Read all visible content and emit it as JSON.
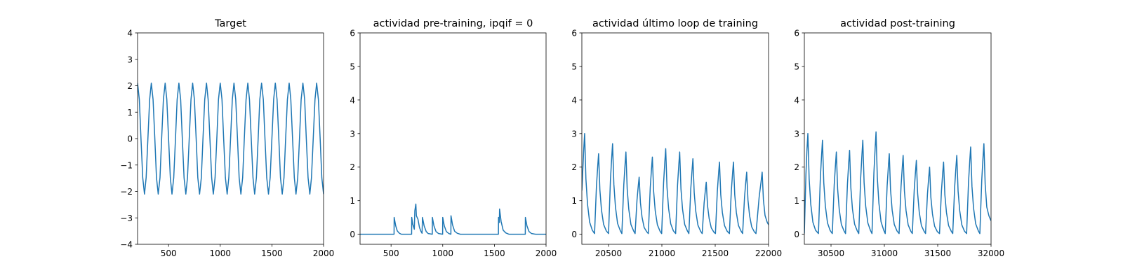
{
  "chart_data": [
    {
      "type": "line",
      "title": "Target",
      "color": "#1f77b4",
      "xlim": [
        200,
        2000
      ],
      "xticks": [
        500,
        1000,
        1500,
        2000
      ],
      "ylim": [
        -4,
        4
      ],
      "yticks": [
        {
          "value": -4,
          "label": "−4"
        },
        {
          "value": -3,
          "label": "−3"
        },
        {
          "value": -2,
          "label": "−2"
        },
        {
          "value": -1,
          "label": "−1"
        },
        0,
        1,
        2,
        3,
        4
      ],
      "x": [
        200,
        217,
        233,
        250,
        267,
        283,
        300,
        317,
        333,
        350,
        367,
        383,
        400,
        417,
        433,
        450,
        467,
        483,
        500,
        517,
        533,
        550,
        567,
        583,
        600,
        617,
        633,
        650,
        667,
        683,
        700,
        717,
        733,
        750,
        767,
        783,
        800,
        817,
        833,
        850,
        867,
        883,
        900,
        917,
        933,
        950,
        967,
        983,
        1000,
        1017,
        1033,
        1050,
        1067,
        1083,
        1100,
        1117,
        1133,
        1150,
        1167,
        1183,
        1200,
        1217,
        1233,
        1250,
        1267,
        1283,
        1300,
        1317,
        1333,
        1350,
        1367,
        1383,
        1400,
        1417,
        1433,
        1450,
        1467,
        1483,
        1500,
        1517,
        1533,
        1550,
        1567,
        1583,
        1600,
        1617,
        1633,
        1650,
        1667,
        1683,
        1700,
        1717,
        1733,
        1750,
        1767,
        1783,
        1800,
        1817,
        1833,
        1850,
        1867,
        1883,
        1900,
        1917,
        1933,
        1950,
        1967,
        1983,
        2000
      ],
      "values": [
        2.1,
        1.48,
        0,
        -1.48,
        -2.1,
        -1.48,
        0,
        1.48,
        2.1,
        1.48,
        0,
        -1.48,
        -2.1,
        -1.48,
        0,
        1.48,
        2.1,
        1.48,
        0,
        -1.48,
        -2.1,
        -1.48,
        0,
        1.48,
        2.1,
        1.48,
        0,
        -1.48,
        -2.1,
        -1.48,
        0,
        1.48,
        2.1,
        1.48,
        0,
        -1.48,
        -2.1,
        -1.48,
        0,
        1.48,
        2.1,
        1.48,
        0,
        -1.48,
        -2.1,
        -1.48,
        0,
        1.48,
        2.1,
        1.48,
        0,
        -1.48,
        -2.1,
        -1.48,
        0,
        1.48,
        2.1,
        1.48,
        0,
        -1.48,
        -2.1,
        -1.48,
        0,
        1.48,
        2.1,
        1.48,
        0,
        -1.48,
        -2.1,
        -1.48,
        0,
        1.48,
        2.1,
        1.48,
        0,
        -1.48,
        -2.1,
        -1.48,
        0,
        1.48,
        2.1,
        1.48,
        0,
        -1.48,
        -2.1,
        -1.48,
        0,
        1.48,
        2.1,
        1.48,
        0,
        -1.48,
        -2.1,
        -1.48,
        0,
        1.48,
        2.1,
        1.48,
        0,
        -1.48,
        -2.1,
        -1.48,
        0,
        1.48,
        2.1,
        1.48,
        0,
        -1.48,
        -2.1
      ]
    },
    {
      "type": "line",
      "title": "actividad pre-training, ipqif = 0",
      "color": "#1f77b4",
      "xlim": [
        200,
        2000
      ],
      "xticks": [
        500,
        1000,
        1500,
        2000
      ],
      "ylim": [
        -0.3,
        6
      ],
      "yticks": [
        0,
        1,
        2,
        3,
        4,
        5,
        6
      ],
      "x": [
        200,
        529,
        530,
        545,
        560,
        580,
        600,
        699,
        700,
        710,
        725,
        730,
        740,
        745,
        760,
        775,
        790,
        800,
        804,
        820,
        840,
        860,
        899,
        900,
        915,
        935,
        960,
        999,
        1000,
        1015,
        1035,
        1060,
        1079,
        1080,
        1095,
        1115,
        1140,
        1170,
        1539,
        1540,
        1548,
        1550,
        1565,
        1585,
        1610,
        1640,
        1799,
        1800,
        1815,
        1835,
        1860,
        1900,
        2000
      ],
      "values": [
        0,
        0,
        0.5,
        0.25,
        0.1,
        0.03,
        0,
        0,
        0.5,
        0.3,
        0.15,
        0.7,
        0.9,
        0.55,
        0.45,
        0.2,
        0.08,
        0.03,
        0.5,
        0.25,
        0.08,
        0.02,
        0,
        0.5,
        0.25,
        0.08,
        0.02,
        0,
        0.5,
        0.25,
        0.08,
        0.02,
        0,
        0.55,
        0.28,
        0.09,
        0.03,
        0,
        0,
        0.5,
        0.35,
        0.75,
        0.38,
        0.12,
        0.04,
        0,
        0,
        0.5,
        0.25,
        0.08,
        0.02,
        0,
        0
      ]
    },
    {
      "type": "line",
      "title": "actividad último loop de training",
      "color": "#1f77b4",
      "xlim": [
        20250,
        22000
      ],
      "xticks": [
        20500,
        21000,
        21500,
        22000
      ],
      "ylim": [
        -0.3,
        6
      ],
      "yticks": [
        0,
        1,
        2,
        3,
        4,
        5,
        6
      ],
      "x": [
        20250,
        20268,
        20276,
        20288,
        20303,
        20323,
        20348,
        20369,
        20387,
        20399,
        20407,
        20419,
        20434,
        20454,
        20479,
        20500,
        20518,
        20530,
        20538,
        20550,
        20565,
        20585,
        20610,
        20625,
        20643,
        20655,
        20663,
        20675,
        20690,
        20710,
        20735,
        20749,
        20767,
        20779,
        20787,
        20799,
        20814,
        20834,
        20859,
        20873,
        20891,
        20903,
        20911,
        20923,
        20938,
        20958,
        20983,
        20998,
        21016,
        21028,
        21036,
        21048,
        21063,
        21083,
        21108,
        21129,
        21147,
        21159,
        21167,
        21179,
        21194,
        21214,
        21239,
        21253,
        21271,
        21283,
        21291,
        21303,
        21318,
        21338,
        21363,
        21378,
        21396,
        21408,
        21416,
        21428,
        21443,
        21463,
        21488,
        21502,
        21520,
        21532,
        21540,
        21552,
        21567,
        21587,
        21612,
        21633,
        21651,
        21663,
        21671,
        21683,
        21698,
        21718,
        21743,
        21757,
        21775,
        21787,
        21795,
        21807,
        21822,
        21842,
        21867,
        21882,
        21912,
        21930,
        21940,
        21952,
        21967,
        21987,
        22000
      ],
      "values": [
        1.3,
        2.55,
        3.0,
        1.65,
        0.9,
        0.36,
        0.12,
        0.02,
        1.44,
        2.04,
        2.4,
        1.32,
        0.72,
        0.29,
        0.1,
        0.02,
        1.62,
        2.3,
        2.7,
        1.49,
        0.81,
        0.32,
        0.11,
        0.02,
        1.47,
        2.08,
        2.45,
        1.35,
        0.74,
        0.29,
        0.1,
        0.02,
        1.02,
        1.45,
        1.7,
        0.94,
        0.51,
        0.2,
        0.07,
        0.02,
        1.38,
        1.96,
        2.3,
        1.27,
        0.69,
        0.28,
        0.09,
        0.02,
        1.53,
        2.17,
        2.55,
        1.4,
        0.77,
        0.31,
        0.1,
        0.02,
        1.47,
        2.08,
        2.45,
        1.35,
        0.74,
        0.29,
        0.1,
        0.02,
        1.35,
        1.91,
        2.25,
        1.24,
        0.68,
        0.27,
        0.09,
        0.02,
        0.93,
        1.32,
        1.55,
        0.85,
        0.47,
        0.19,
        0.06,
        0.02,
        1.29,
        1.83,
        2.15,
        1.18,
        0.65,
        0.26,
        0.09,
        0.02,
        1.29,
        1.83,
        2.15,
        1.18,
        0.65,
        0.26,
        0.09,
        0.02,
        1.11,
        1.57,
        1.85,
        1.02,
        0.56,
        0.22,
        0.07,
        0.02,
        1.11,
        1.57,
        1.85,
        1.02,
        0.56,
        0.36,
        0.28
      ]
    },
    {
      "type": "line",
      "title": "actividad post-training",
      "color": "#1f77b4",
      "xlim": [
        30250,
        32000
      ],
      "xticks": [
        30500,
        31000,
        31500,
        32000
      ],
      "ylim": [
        -0.3,
        6
      ],
      "yticks": [
        0,
        1,
        2,
        3,
        4,
        5,
        6
      ],
      "x": [
        30250,
        30265,
        30275,
        30283,
        30295,
        30310,
        30330,
        30355,
        30382,
        30400,
        30412,
        30420,
        30432,
        30447,
        30467,
        30492,
        30512,
        30530,
        30542,
        30550,
        30562,
        30577,
        30597,
        30622,
        30636,
        30654,
        30666,
        30674,
        30686,
        30701,
        30721,
        30746,
        30760,
        30778,
        30790,
        30798,
        30810,
        30825,
        30845,
        30870,
        30884,
        30902,
        30914,
        30922,
        30934,
        30949,
        30969,
        30994,
        31008,
        31026,
        31038,
        31046,
        31058,
        31073,
        31093,
        31118,
        31138,
        31156,
        31168,
        31176,
        31188,
        31203,
        31223,
        31248,
        31262,
        31280,
        31292,
        31300,
        31312,
        31327,
        31347,
        31372,
        31386,
        31404,
        31416,
        31424,
        31436,
        31451,
        31471,
        31496,
        31517,
        31535,
        31547,
        31555,
        31567,
        31582,
        31602,
        31627,
        31641,
        31659,
        31671,
        31679,
        31691,
        31706,
        31726,
        31751,
        31771,
        31789,
        31801,
        31809,
        31821,
        31836,
        31856,
        31881,
        31895,
        31913,
        31925,
        31933,
        31945,
        31960,
        31980,
        32000
      ],
      "values": [
        0.02,
        1.8,
        2.55,
        3.0,
        1.65,
        0.9,
        0.36,
        0.12,
        0.02,
        1.68,
        2.38,
        2.8,
        1.54,
        0.84,
        0.34,
        0.11,
        0.02,
        1.47,
        2.08,
        2.45,
        1.35,
        0.74,
        0.29,
        0.1,
        0.02,
        1.5,
        2.13,
        2.5,
        1.38,
        0.75,
        0.3,
        0.1,
        0.02,
        1.68,
        2.38,
        2.8,
        1.54,
        0.84,
        0.34,
        0.11,
        0.02,
        1.83,
        2.59,
        3.05,
        1.68,
        0.92,
        0.37,
        0.12,
        0.02,
        1.44,
        2.04,
        2.4,
        1.32,
        0.72,
        0.29,
        0.1,
        0.02,
        1.41,
        2.0,
        2.35,
        1.29,
        0.71,
        0.28,
        0.09,
        0.02,
        1.32,
        1.87,
        2.2,
        1.21,
        0.66,
        0.26,
        0.09,
        0.02,
        1.2,
        1.7,
        2.0,
        1.1,
        0.6,
        0.24,
        0.08,
        0.02,
        1.29,
        1.83,
        2.15,
        1.18,
        0.65,
        0.26,
        0.09,
        0.02,
        1.41,
        2.0,
        2.35,
        1.29,
        0.71,
        0.28,
        0.09,
        0.02,
        1.56,
        2.21,
        2.6,
        1.43,
        0.78,
        0.31,
        0.1,
        0.02,
        1.62,
        2.3,
        2.7,
        1.49,
        0.81,
        0.55,
        0.4
      ]
    }
  ]
}
